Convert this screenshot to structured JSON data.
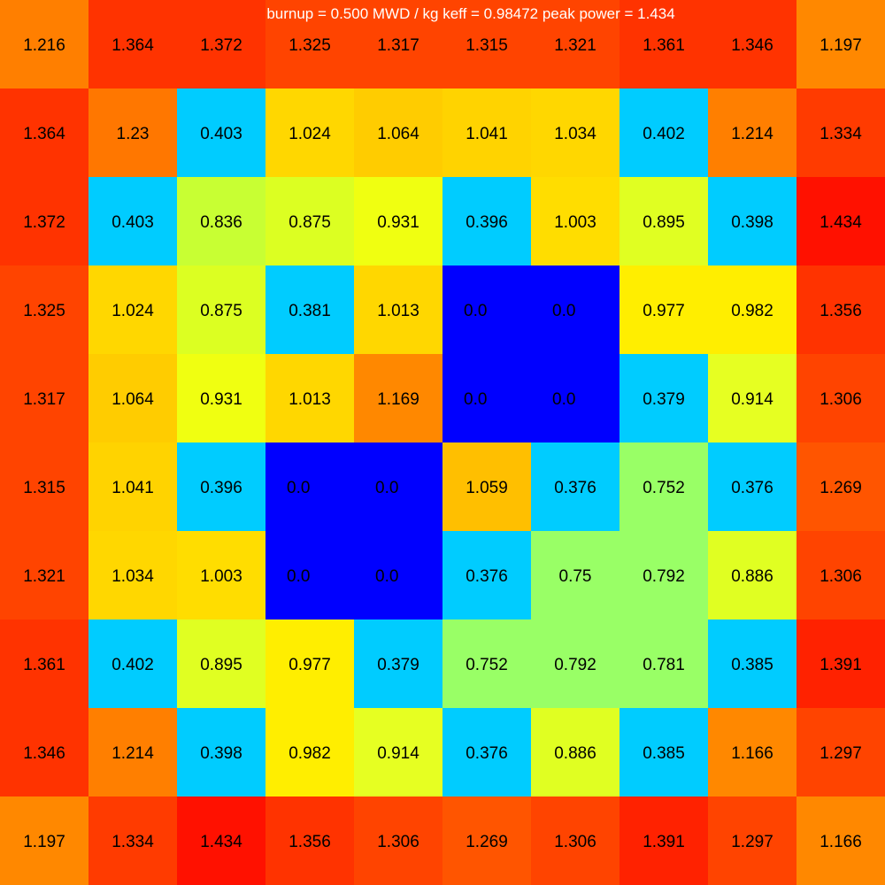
{
  "chart_data": {
    "type": "heatmap",
    "title": "burnup = 0.500 MWD / kg  keff = 0.98472  peak power = 1.434",
    "xlabel": "",
    "ylabel": "",
    "grid": false,
    "rows": 10,
    "cols": 10,
    "values": [
      [
        1.216,
        1.364,
        1.372,
        1.325,
        1.317,
        1.315,
        1.321,
        1.361,
        1.346,
        1.197
      ],
      [
        1.364,
        1.23,
        0.403,
        1.024,
        1.064,
        1.041,
        1.034,
        0.402,
        1.214,
        1.334
      ],
      [
        1.372,
        0.403,
        0.836,
        0.875,
        0.931,
        0.396,
        1.003,
        0.895,
        0.398,
        1.434
      ],
      [
        1.325,
        1.024,
        0.875,
        0.381,
        1.013,
        0.0,
        0.0,
        0.977,
        0.982,
        1.356
      ],
      [
        1.317,
        1.064,
        0.931,
        1.013,
        1.169,
        0.0,
        0.0,
        0.379,
        0.914,
        1.306
      ],
      [
        1.315,
        1.041,
        0.396,
        0.0,
        0.0,
        1.059,
        0.376,
        0.752,
        0.376,
        1.269
      ],
      [
        1.321,
        1.034,
        1.003,
        0.0,
        0.0,
        0.376,
        0.75,
        0.792,
        0.886,
        1.306
      ],
      [
        1.361,
        0.402,
        0.895,
        0.977,
        0.379,
        0.752,
        0.792,
        0.781,
        0.385,
        1.391
      ],
      [
        1.346,
        1.214,
        0.398,
        0.982,
        0.914,
        0.376,
        0.886,
        0.385,
        1.166,
        1.297
      ],
      [
        1.197,
        1.334,
        1.434,
        1.356,
        1.306,
        1.269,
        1.306,
        1.391,
        1.297,
        1.166
      ]
    ],
    "labels": [
      [
        "1.216",
        "1.364",
        "1.372",
        "1.325",
        "1.317",
        "1.315",
        "1.321",
        "1.361",
        "1.346",
        "1.197"
      ],
      [
        "1.364",
        "1.23",
        "0.403",
        "1.024",
        "1.064",
        "1.041",
        "1.034",
        "0.402",
        "1.214",
        "1.334"
      ],
      [
        "1.372",
        "0.403",
        "0.836",
        "0.875",
        "0.931",
        "0.396",
        "1.003",
        "0.895",
        "0.398",
        "1.434"
      ],
      [
        "1.325",
        "1.024",
        "0.875",
        "0.381",
        "1.013",
        "0.0",
        "0.0",
        "0.977",
        "0.982",
        "1.356"
      ],
      [
        "1.317",
        "1.064",
        "0.931",
        "1.013",
        "1.169",
        "0.0",
        "0.0",
        "0.379",
        "0.914",
        "1.306"
      ],
      [
        "1.315",
        "1.041",
        "0.396",
        "0.0",
        "0.0",
        "1.059",
        "0.376",
        "0.752",
        "0.376",
        "1.269"
      ],
      [
        "1.321",
        "1.034",
        "1.003",
        "0.0",
        "0.0",
        "0.376",
        "0.75",
        "0.792",
        "0.886",
        "1.306"
      ],
      [
        "1.361",
        "0.402",
        "0.895",
        "0.977",
        "0.379",
        "0.752",
        "0.792",
        "0.781",
        "0.385",
        "1.391"
      ],
      [
        "1.346",
        "1.214",
        "0.398",
        "0.982",
        "0.914",
        "0.376",
        "0.886",
        "0.385",
        "1.166",
        "1.297"
      ],
      [
        "1.197",
        "1.334",
        "1.434",
        "1.356",
        "1.306",
        "1.269",
        "1.306",
        "1.391",
        "1.297",
        "1.166"
      ]
    ],
    "colors": [
      [
        "#ff7f00",
        "#ff3300",
        "#ff3300",
        "#ff4400",
        "#ff4400",
        "#ff4400",
        "#ff4400",
        "#ff3300",
        "#ff3300",
        "#ff8800"
      ],
      [
        "#ff3300",
        "#ff7700",
        "#00ccff",
        "#ffd700",
        "#ffcc00",
        "#ffd300",
        "#ffd700",
        "#00ccff",
        "#ff7f00",
        "#ff3b00"
      ],
      [
        "#ff3300",
        "#00ccff",
        "#c8ff33",
        "#dcff22",
        "#f0ff11",
        "#00ccff",
        "#ffdd00",
        "#e0ff22",
        "#00ccff",
        "#ff1100"
      ],
      [
        "#ff4400",
        "#ffd700",
        "#dcff22",
        "#00ccff",
        "#ffd700",
        "#0000ff",
        "#0000ff",
        "#ffee00",
        "#ffee00",
        "#ff3300"
      ],
      [
        "#ff4400",
        "#ffcc00",
        "#f0ff11",
        "#ffd700",
        "#ff8800",
        "#0000ff",
        "#0000ff",
        "#00ccff",
        "#e6ff22",
        "#ff4400"
      ],
      [
        "#ff4400",
        "#ffd300",
        "#00ccff",
        "#0000ff",
        "#0000ff",
        "#ffbf00",
        "#00ccff",
        "#99ff66",
        "#00ccff",
        "#ff5500"
      ],
      [
        "#ff4400",
        "#ffd700",
        "#ffdd00",
        "#0000ff",
        "#0000ff",
        "#00ccff",
        "#99ff66",
        "#99ff66",
        "#e0ff22",
        "#ff4400"
      ],
      [
        "#ff3300",
        "#00ccff",
        "#e0ff22",
        "#ffee00",
        "#00ccff",
        "#99ff66",
        "#99ff66",
        "#99ff66",
        "#00ccff",
        "#ff2200"
      ],
      [
        "#ff3300",
        "#ff7f00",
        "#00ccff",
        "#ffee00",
        "#e6ff22",
        "#00ccff",
        "#e0ff22",
        "#00ccff",
        "#ff8800",
        "#ff4400"
      ],
      [
        "#ff8800",
        "#ff3b00",
        "#ff1100",
        "#ff3300",
        "#ff4400",
        "#ff5500",
        "#ff4400",
        "#ff2200",
        "#ff4400",
        "#ff8800"
      ]
    ],
    "title_color": "#ffffff",
    "label_color": "#000000"
  }
}
